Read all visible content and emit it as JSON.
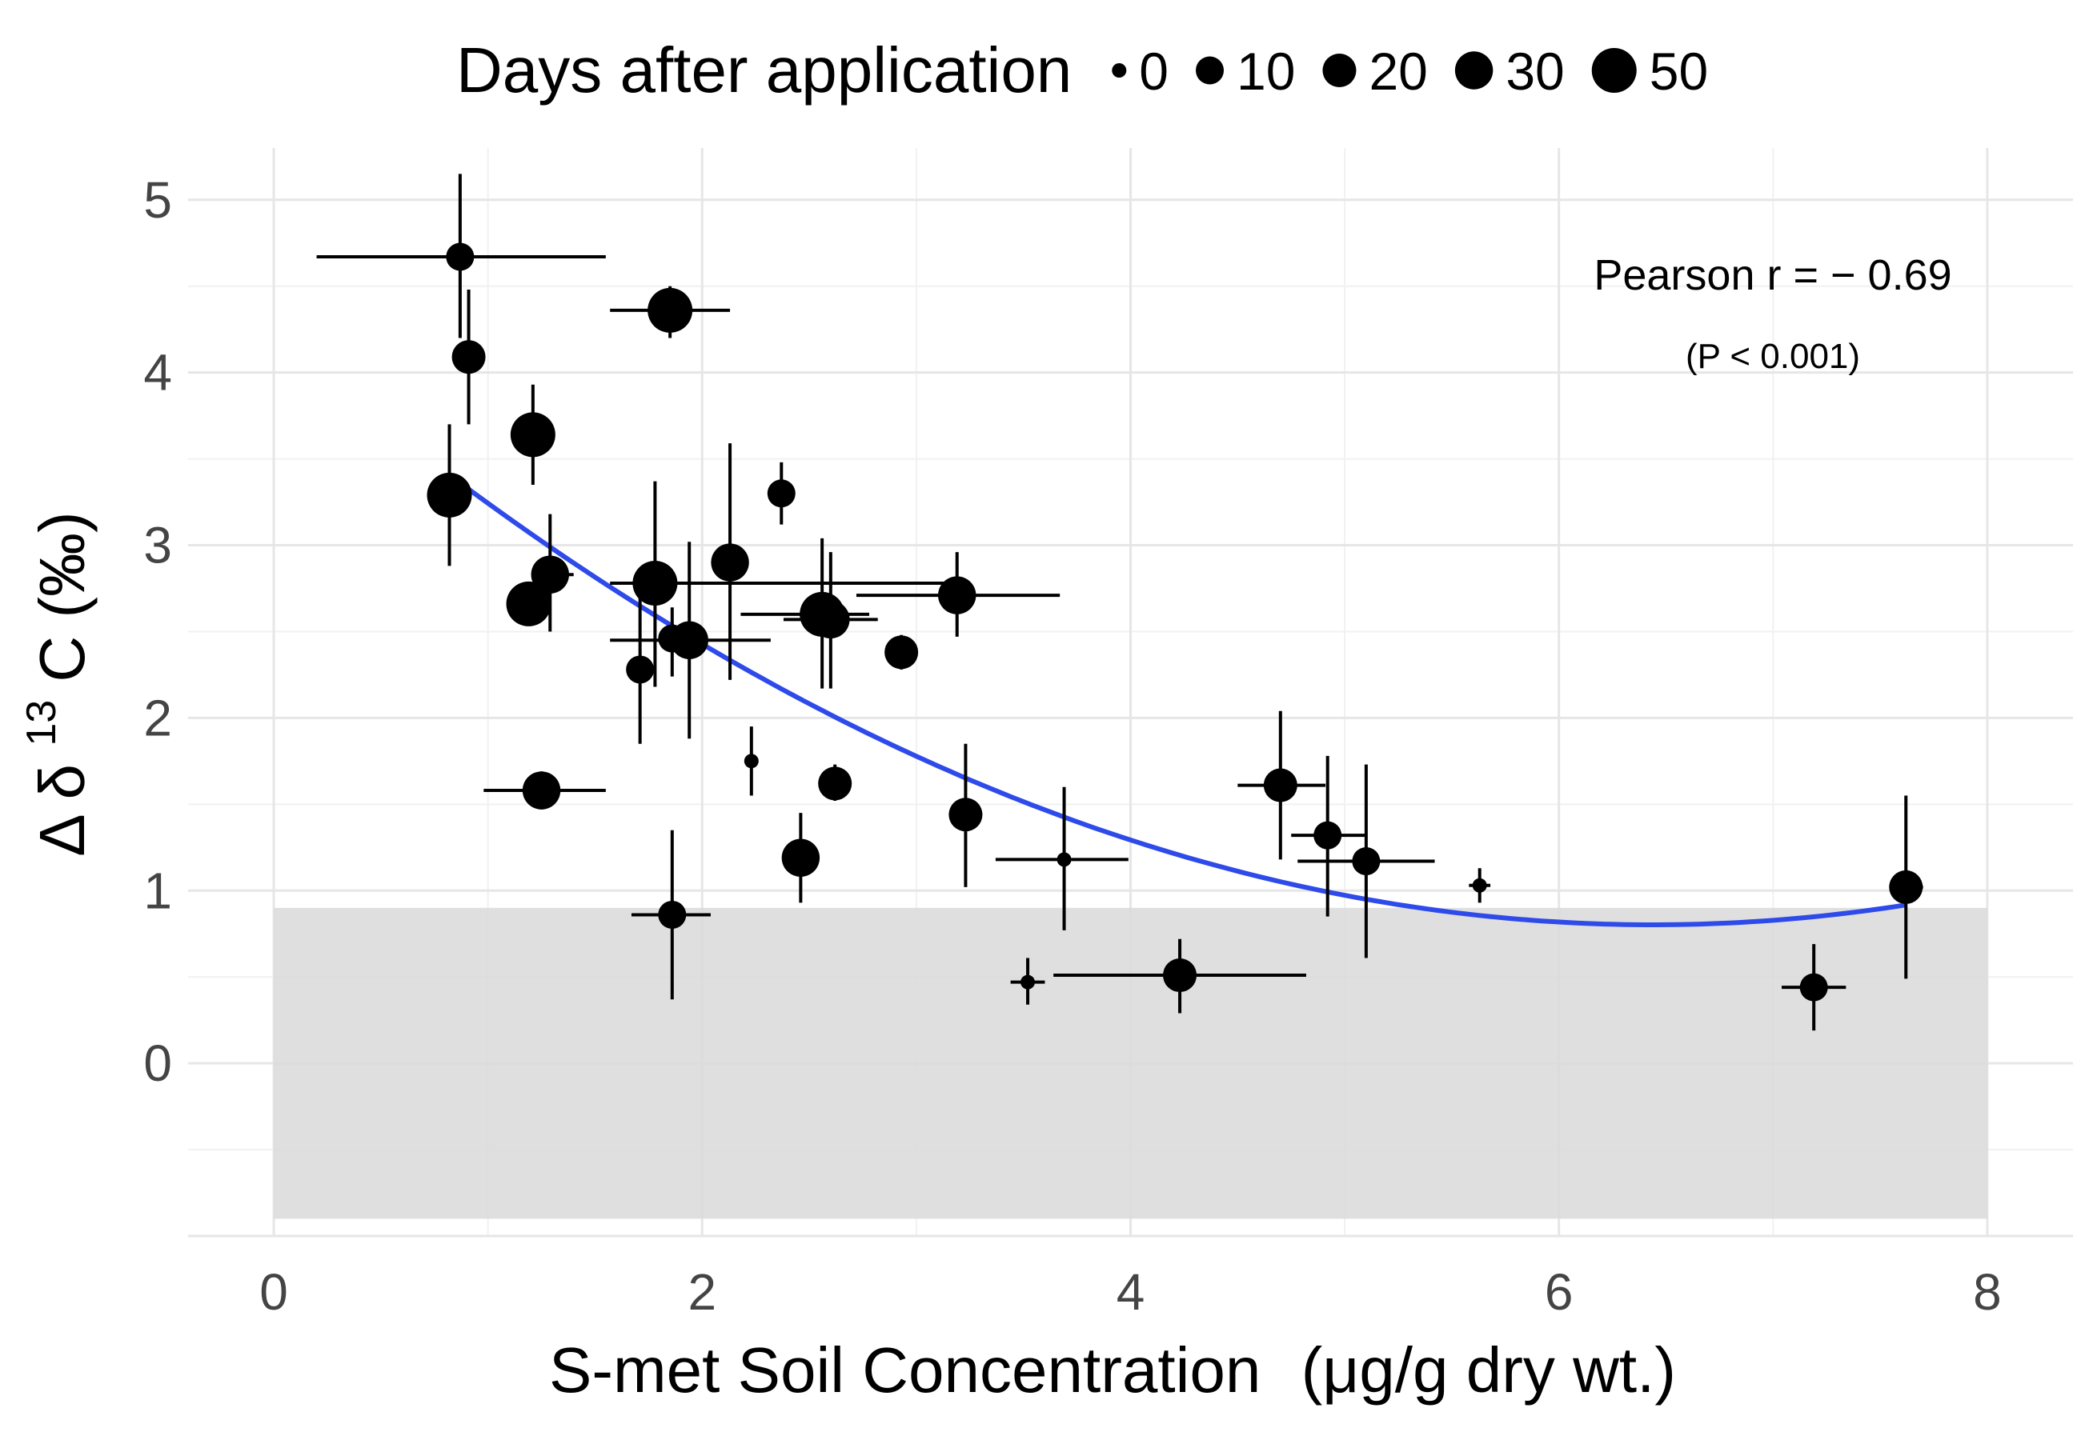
{
  "chart_data": {
    "type": "scatter",
    "title": "",
    "xlabel": "S-met Soil Concentration",
    "xlabel_unit": "(μg/g dry wt.)",
    "ylabel_prefix": "Δ δ",
    "ylabel_sup": "13",
    "ylabel_suffix": "C (‰)",
    "xlim": [
      -0.4,
      8.4
    ],
    "ylim": [
      -1.0,
      5.3
    ],
    "x_ticks": [
      0,
      2,
      4,
      6,
      8
    ],
    "x_tick_labels": [
      "0",
      "2",
      "4",
      "6",
      "8"
    ],
    "y_ticks": [
      0,
      1,
      2,
      3,
      4,
      5
    ],
    "y_tick_labels": [
      "0",
      "1",
      "2",
      "3",
      "4",
      "5"
    ],
    "grid": true,
    "legend": {
      "title": "Days after application",
      "placement": "top",
      "entries": [
        {
          "label": "0",
          "days": 0
        },
        {
          "label": "10",
          "days": 10
        },
        {
          "label": "20",
          "days": 20
        },
        {
          "label": "30",
          "days": 30
        },
        {
          "label": "50",
          "days": 50
        }
      ]
    },
    "annotation": {
      "line1": "Pearson r = − 0.69",
      "line2": "(P < 0.001)"
    },
    "reference_band": {
      "y_min": -0.9,
      "y_max": 0.9,
      "x_min": 0,
      "x_max": 8,
      "color": "#d9d9d9"
    },
    "fit": {
      "type": "quadratic",
      "color": "#2E4BEA",
      "x_range": [
        0.82,
        7.62
      ],
      "coefficients": [
        4.223,
        -1.0625,
        0.0825
      ]
    },
    "points": [
      {
        "x": 0.87,
        "y": 4.67,
        "x_err": [
          0.2,
          1.55
        ],
        "y_err": [
          4.2,
          5.15
        ],
        "days": 10
      },
      {
        "x": 0.91,
        "y": 4.09,
        "y_err": [
          3.7,
          4.48
        ],
        "days": 20
      },
      {
        "x": 0.82,
        "y": 3.29,
        "x_err": [
          0.72,
          0.92
        ],
        "y_err": [
          2.88,
          3.7
        ],
        "days": 50
      },
      {
        "x": 1.21,
        "y": 3.64,
        "y_err": [
          3.35,
          3.93
        ],
        "days": 50
      },
      {
        "x": 1.29,
        "y": 2.83,
        "x_err": [
          1.25,
          1.4
        ],
        "y_err": [
          2.5,
          3.18
        ],
        "days": 30
      },
      {
        "x": 1.19,
        "y": 2.66,
        "days": 50
      },
      {
        "x": 1.25,
        "y": 1.58,
        "x_err": [
          0.98,
          1.55
        ],
        "y_err": [
          1.47,
          1.69
        ],
        "days": 30
      },
      {
        "x": 1.85,
        "y": 4.36,
        "x_err": [
          1.57,
          2.13
        ],
        "y_err": [
          4.2,
          4.5
        ],
        "days": 50
      },
      {
        "x": 2.37,
        "y": 3.3,
        "y_err": [
          3.12,
          3.48
        ],
        "days": 10
      },
      {
        "x": 1.78,
        "y": 2.78,
        "x_err": [
          1.57,
          3.17
        ],
        "y_err": [
          2.18,
          3.37
        ],
        "days": 50
      },
      {
        "x": 1.71,
        "y": 2.28,
        "y_err": [
          1.85,
          2.73
        ],
        "days": 10
      },
      {
        "x": 1.86,
        "y": 2.46,
        "y_err": [
          2.24,
          2.64
        ],
        "days": 10
      },
      {
        "x": 1.94,
        "y": 2.45,
        "x_err": [
          1.57,
          2.32
        ],
        "y_err": [
          1.88,
          3.02
        ],
        "days": 30
      },
      {
        "x": 2.13,
        "y": 2.9,
        "x_err": [
          2.08,
          2.2
        ],
        "y_err": [
          2.22,
          3.59
        ],
        "days": 30
      },
      {
        "x": 2.23,
        "y": 1.75,
        "y_err": [
          1.55,
          1.95
        ],
        "days": 0
      },
      {
        "x": 2.56,
        "y": 2.6,
        "x_err": [
          2.18,
          2.78
        ],
        "y_err": [
          2.17,
          3.04
        ],
        "days": 50
      },
      {
        "x": 2.6,
        "y": 2.57,
        "x_err": [
          2.38,
          2.82
        ],
        "y_err": [
          2.17,
          2.96
        ],
        "days": 30
      },
      {
        "x": 2.62,
        "y": 1.62,
        "y_err": [
          1.52,
          1.73
        ],
        "days": 20
      },
      {
        "x": 2.93,
        "y": 2.38,
        "y_err": [
          2.28,
          2.48
        ],
        "days": 20
      },
      {
        "x": 2.46,
        "y": 1.19,
        "y_err": [
          0.93,
          1.45
        ],
        "days": 30
      },
      {
        "x": 1.86,
        "y": 0.86,
        "x_err": [
          1.67,
          2.04
        ],
        "y_err": [
          0.37,
          1.35
        ],
        "days": 10
      },
      {
        "x": 3.19,
        "y": 2.71,
        "x_err": [
          2.72,
          3.67
        ],
        "y_err": [
          2.47,
          2.96
        ],
        "days": 30
      },
      {
        "x": 3.23,
        "y": 1.44,
        "y_err": [
          1.02,
          1.85
        ],
        "days": 20
      },
      {
        "x": 3.69,
        "y": 1.18,
        "x_err": [
          3.37,
          3.99
        ],
        "y_err": [
          0.77,
          1.6
        ],
        "days": 0
      },
      {
        "x": 3.52,
        "y": 0.47,
        "x_err": [
          3.44,
          3.6
        ],
        "y_err": [
          0.34,
          0.61
        ],
        "days": 0
      },
      {
        "x": 4.23,
        "y": 0.51,
        "x_err": [
          3.64,
          4.82
        ],
        "y_err": [
          0.29,
          0.72
        ],
        "days": 20
      },
      {
        "x": 4.7,
        "y": 1.61,
        "x_err": [
          4.5,
          4.91
        ],
        "y_err": [
          1.18,
          2.04
        ],
        "days": 20
      },
      {
        "x": 4.92,
        "y": 1.32,
        "x_err": [
          4.75,
          5.1
        ],
        "y_err": [
          0.85,
          1.78
        ],
        "days": 10
      },
      {
        "x": 5.1,
        "y": 1.17,
        "x_err": [
          4.78,
          5.42
        ],
        "y_err": [
          0.61,
          1.73
        ],
        "days": 10
      },
      {
        "x": 5.63,
        "y": 1.03,
        "x_err": [
          5.58,
          5.68
        ],
        "y_err": [
          0.93,
          1.13
        ],
        "days": 0
      },
      {
        "x": 7.19,
        "y": 0.44,
        "x_err": [
          7.04,
          7.34
        ],
        "y_err": [
          0.19,
          0.69
        ],
        "days": 10
      },
      {
        "x": 7.62,
        "y": 1.02,
        "x_err": [
          7.55,
          7.7
        ],
        "y_err": [
          0.49,
          1.55
        ],
        "days": 20
      }
    ]
  }
}
